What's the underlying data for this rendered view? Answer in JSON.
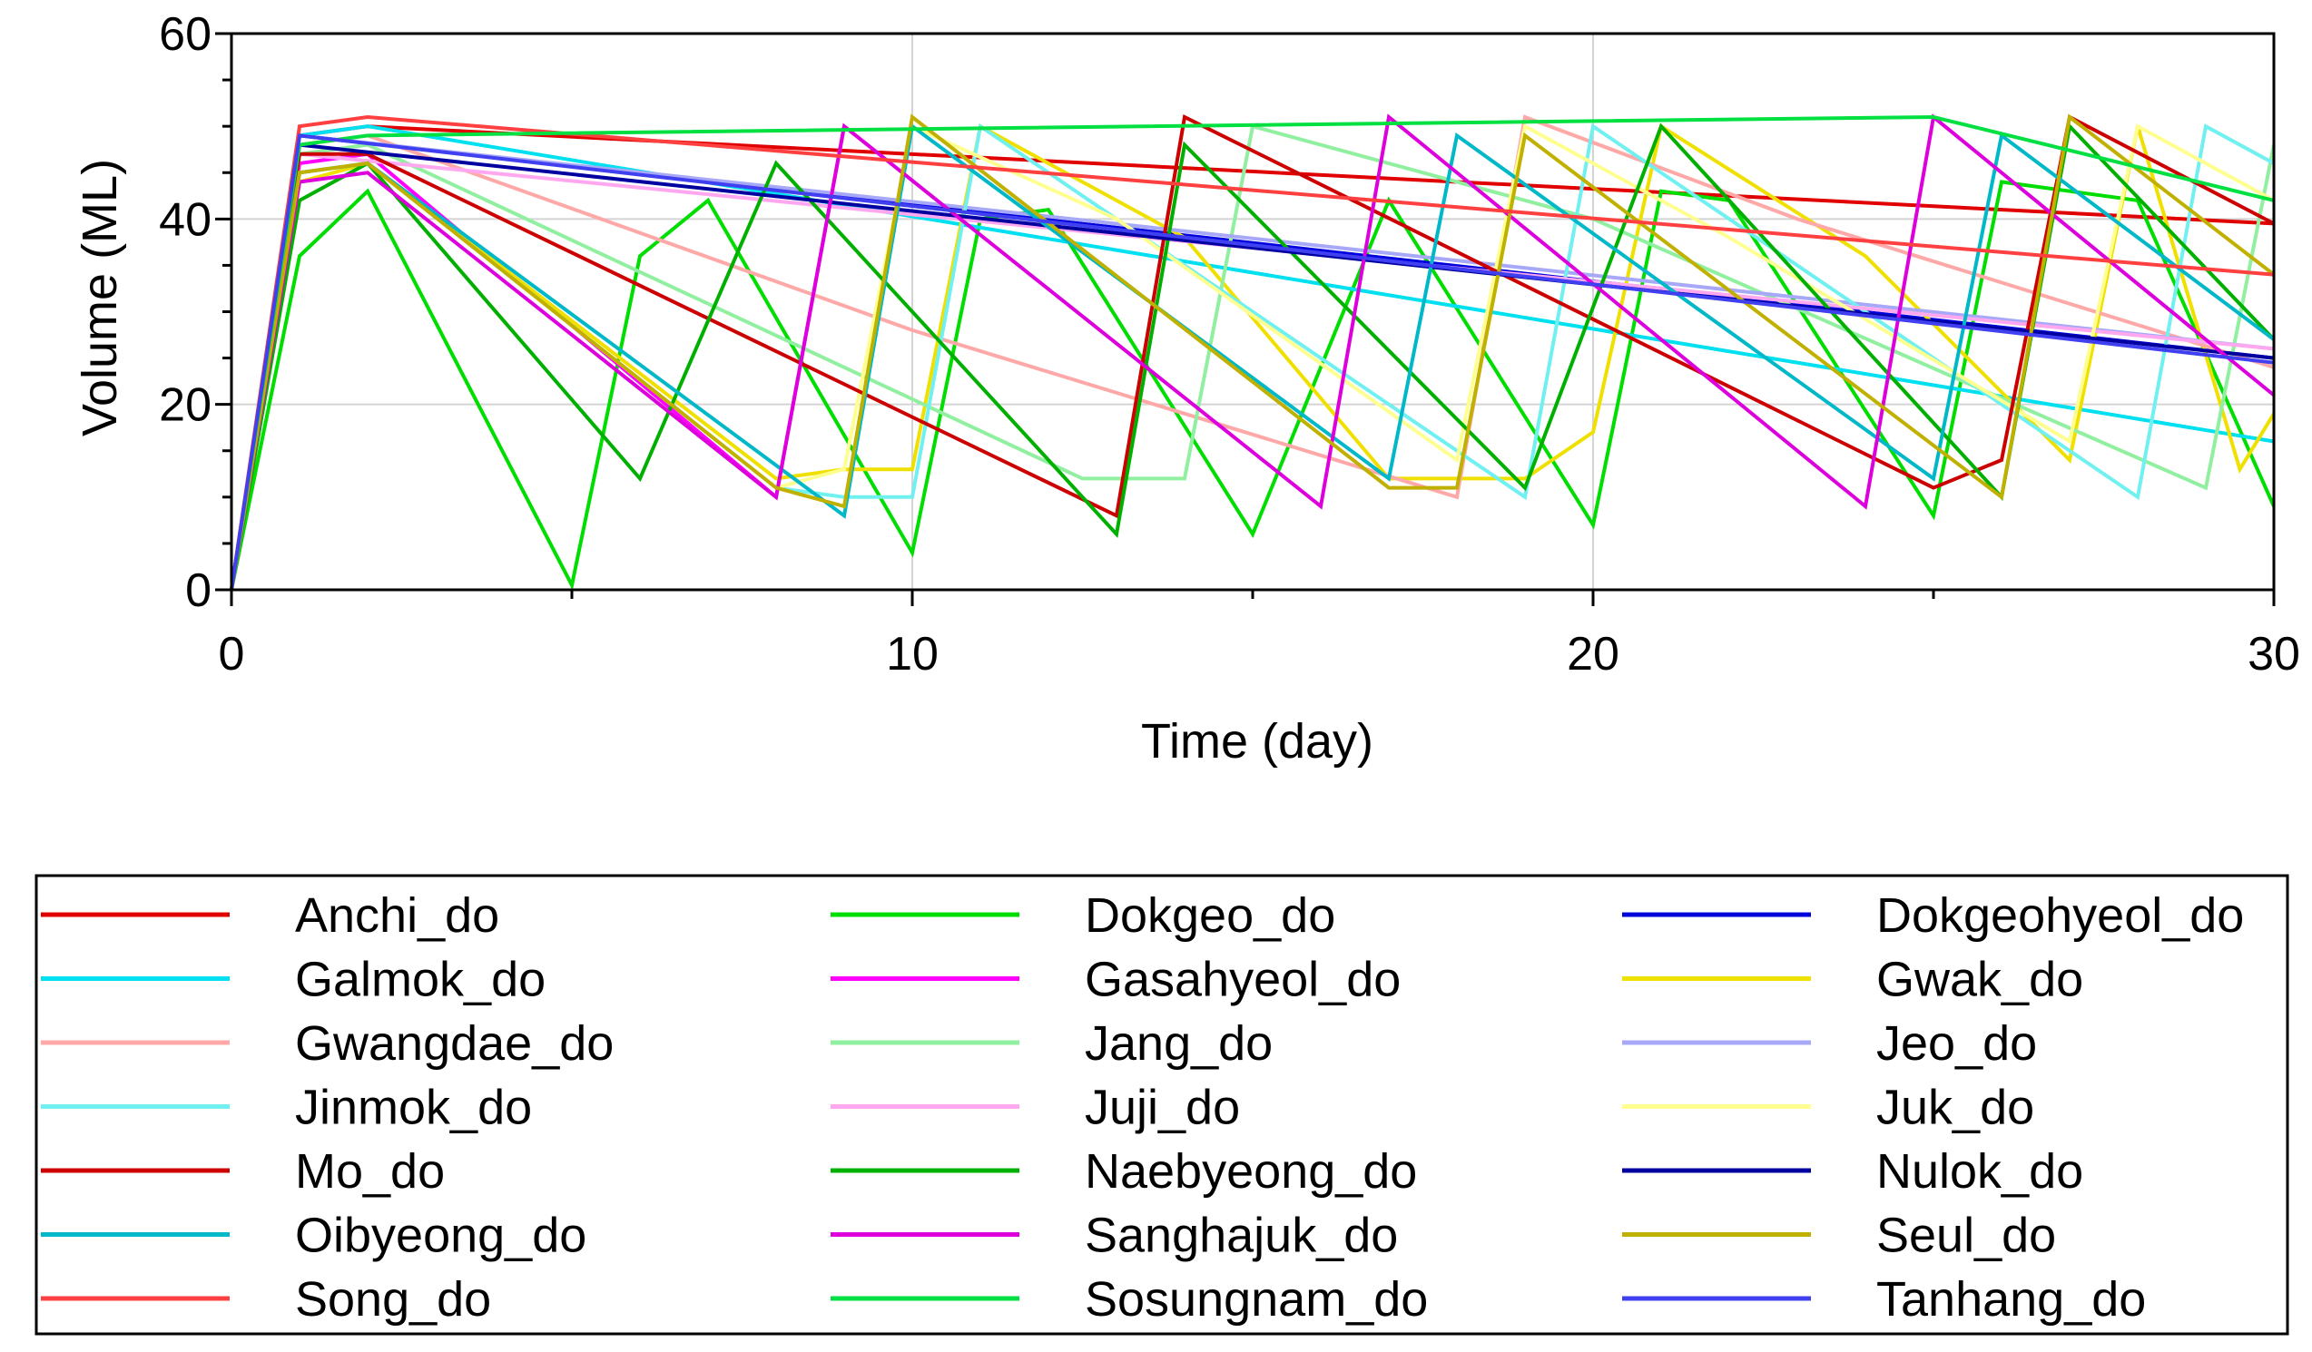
{
  "chart_data": {
    "type": "line",
    "title": "",
    "xlabel": "Time (day)",
    "ylabel": "Volume (ML)",
    "xlim": [
      0,
      30
    ],
    "ylim": [
      0,
      60
    ],
    "xticks": [
      0,
      10,
      20,
      30
    ],
    "yticks": [
      0,
      20,
      40,
      60
    ],
    "grid": true,
    "legend_position": "bottom",
    "series": [
      {
        "name": "Anchi_do",
        "color": "#e00000",
        "x": [
          0,
          1,
          2,
          30
        ],
        "y": [
          0,
          49,
          50,
          39.5
        ]
      },
      {
        "name": "Dokgeo_do",
        "color": "#00dd00",
        "x": [
          0,
          1,
          2,
          5,
          6,
          7,
          10,
          11,
          12,
          15,
          17,
          20,
          21,
          22,
          25,
          26,
          28,
          30
        ],
        "y": [
          0,
          36,
          43,
          0.5,
          36,
          42,
          4,
          40,
          41,
          6,
          42,
          7,
          43,
          42,
          8,
          44,
          42,
          9
        ]
      },
      {
        "name": "Dokgeohyeol_do",
        "color": "#0000dd",
        "x": [
          0,
          1,
          30
        ],
        "y": [
          0,
          49,
          25
        ]
      },
      {
        "name": "Galmok_do",
        "color": "#00e0f0",
        "x": [
          0,
          1,
          2,
          30
        ],
        "y": [
          0,
          49,
          50,
          16
        ]
      },
      {
        "name": "Gasahyeol_do",
        "color": "#ff00ff",
        "x": [
          0,
          1,
          2,
          8,
          9
        ],
        "y": [
          0,
          46,
          47,
          10,
          50
        ]
      },
      {
        "name": "Gwak_do",
        "color": "#f0e000",
        "x": [
          0,
          1,
          2,
          8,
          9,
          10,
          11,
          14,
          17,
          18,
          19,
          20,
          21,
          24,
          27,
          28,
          29.5,
          30
        ],
        "y": [
          0,
          44,
          46,
          12,
          13,
          13,
          50,
          38,
          12,
          12,
          12,
          17,
          50,
          36,
          14,
          50,
          13,
          19
        ]
      },
      {
        "name": "Gwangdae_do",
        "color": "#ffa8a8",
        "x": [
          0,
          1,
          2,
          10,
          18,
          19,
          23,
          30
        ],
        "y": [
          0,
          48,
          49,
          28,
          10,
          51,
          40,
          24
        ]
      },
      {
        "name": "Jang_do",
        "color": "#90f0a0",
        "x": [
          0,
          1,
          2,
          12.5,
          14,
          15,
          20,
          29,
          30
        ],
        "y": [
          0,
          47,
          48,
          12,
          12,
          50,
          40,
          11,
          48
        ]
      },
      {
        "name": "Jeo_do",
        "color": "#a8a8f8",
        "x": [
          0,
          1,
          30
        ],
        "y": [
          0,
          49,
          26
        ]
      },
      {
        "name": "Jinmok_do",
        "color": "#70f0f0",
        "x": [
          0,
          1,
          2,
          8,
          9,
          10,
          11,
          19,
          20,
          28,
          29,
          30
        ],
        "y": [
          0,
          45,
          46,
          11,
          10,
          10,
          50,
          10,
          50,
          10,
          50,
          46
        ]
      },
      {
        "name": "Juji_do",
        "color": "#ffa8f0",
        "x": [
          0,
          1,
          30
        ],
        "y": [
          0,
          47,
          26
        ]
      },
      {
        "name": "Juk_do",
        "color": "#ffff90",
        "x": [
          0,
          1,
          2,
          8,
          9,
          10,
          13,
          18,
          19,
          22,
          27,
          28,
          30
        ],
        "y": [
          0,
          45,
          46,
          11,
          13,
          50,
          40,
          14,
          50,
          38,
          16,
          50,
          42
        ]
      },
      {
        "name": "Mo_do",
        "color": "#cc0000",
        "x": [
          0,
          1,
          2,
          13,
          14,
          25,
          26,
          27,
          30
        ],
        "y": [
          0,
          47,
          47,
          8,
          51,
          11,
          14,
          51,
          39.5
        ]
      },
      {
        "name": "Naebyeong_do",
        "color": "#00b000",
        "x": [
          0,
          1,
          2,
          6,
          8,
          13,
          14,
          19,
          21,
          26,
          27,
          30
        ],
        "y": [
          0,
          42,
          46,
          12,
          46,
          6,
          48,
          11,
          50,
          10,
          50,
          27
        ]
      },
      {
        "name": "Nulok_do",
        "color": "#0000a0",
        "x": [
          0,
          1,
          30
        ],
        "y": [
          0,
          48,
          25
        ]
      },
      {
        "name": "Oibyeong_do",
        "color": "#00b8c8",
        "x": [
          0,
          1,
          2,
          9,
          10,
          17,
          18,
          25,
          26,
          30
        ],
        "y": [
          0,
          45,
          46,
          8,
          50,
          12,
          49,
          12,
          49,
          27
        ]
      },
      {
        "name": "Sanghajuk_do",
        "color": "#dd00dd",
        "x": [
          0,
          1,
          2,
          8,
          9,
          16,
          17,
          24,
          25,
          30
        ],
        "y": [
          0,
          44,
          45,
          10,
          50,
          9,
          51,
          9,
          51,
          21
        ]
      },
      {
        "name": "Seul_do",
        "color": "#c0b000",
        "x": [
          0,
          1,
          2,
          8,
          9,
          10,
          17,
          18,
          19,
          26,
          27,
          30
        ],
        "y": [
          0,
          45,
          46,
          11,
          9,
          51,
          11,
          11,
          49,
          10,
          51,
          34
        ]
      },
      {
        "name": "Song_do",
        "color": "#ff4040",
        "x": [
          0,
          1,
          2,
          30
        ],
        "y": [
          0,
          50,
          51,
          34
        ]
      },
      {
        "name": "Sosungnam_do",
        "color": "#00e040",
        "x": [
          0,
          1,
          2,
          25,
          30
        ],
        "y": [
          0,
          48,
          49,
          51,
          42
        ]
      },
      {
        "name": "Tanhang_do",
        "color": "#4040f0",
        "x": [
          0,
          1,
          30
        ],
        "y": [
          0,
          49,
          24.5
        ]
      }
    ]
  }
}
